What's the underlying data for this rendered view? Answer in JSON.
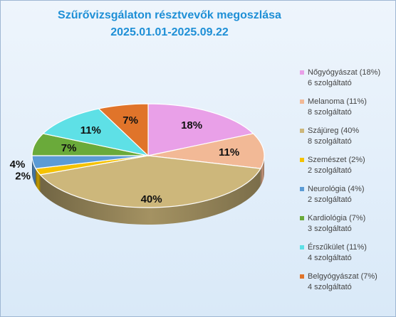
{
  "chart_data": {
    "type": "pie",
    "title_line1": "Szűrővizsgálaton résztvevők megoszlása",
    "title_line2": "2025.01.01-2025.09.22",
    "slices": [
      {
        "label": "18%",
        "value": 18,
        "color": "#e9a0e8",
        "legend1": "Nőgyógyászat (18%)",
        "legend2": "6 szolgáltató"
      },
      {
        "label": "11%",
        "value": 11,
        "color": "#f2b996",
        "legend1": "Melanoma (11%)",
        "legend2": "8 szolgáltató"
      },
      {
        "label": "40%",
        "value": 40,
        "color": "#cdb77b",
        "legend1": "Szájüreg (40%",
        "legend2": "8 szolgáltató"
      },
      {
        "label": "2%",
        "value": 2,
        "color": "#f5c200",
        "legend1": "Szemészet (2%)",
        "legend2": "2 szolgáltató"
      },
      {
        "label": "4%",
        "value": 4,
        "color": "#5b9bd5",
        "legend1": "Neurológia (4%)",
        "legend2": "2 szolgáltató"
      },
      {
        "label": "7%",
        "value": 7,
        "color": "#6aaa3a",
        "legend1": "Kardiológia (7%)",
        "legend2": "3 szolgáltató"
      },
      {
        "label": "11%",
        "value": 11,
        "color": "#5ee0e6",
        "legend1": "Érszűkület (11%)",
        "legend2": "4 szolgáltató"
      },
      {
        "label": "7%",
        "value": 7,
        "color": "#e0742a",
        "legend1": "Belgyógyászat (7%)",
        "legend2": "4 szolgáltató"
      }
    ],
    "legend_position": "right"
  }
}
